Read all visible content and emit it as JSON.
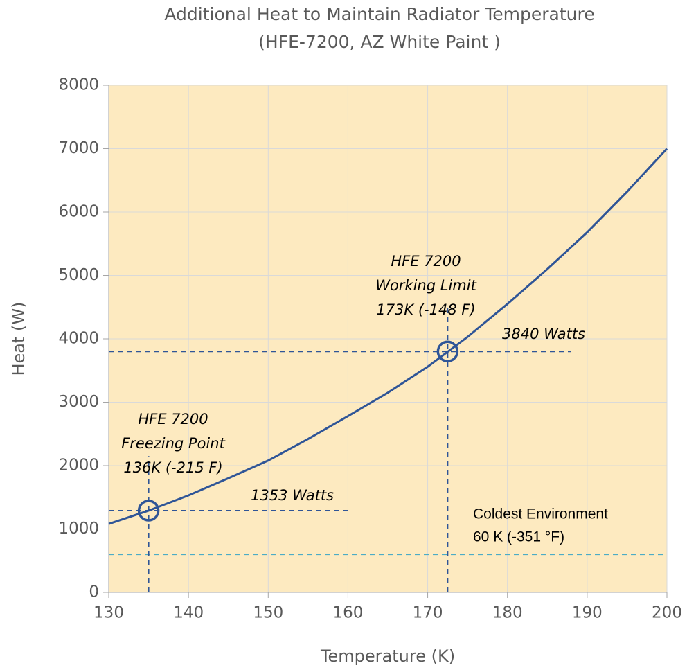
{
  "chart_data": {
    "type": "line",
    "title": "Additional Heat  to Maintain Radiator Temperature",
    "subtitle": "(HFE-7200, AZ White Paint )",
    "x_label": "Temperature  (K)",
    "y_label": "Heat (W)",
    "x": [
      130,
      135,
      140,
      145,
      150,
      155,
      160,
      165,
      170,
      175,
      180,
      185,
      190,
      195,
      200
    ],
    "series": [
      {
        "color": "#2f5597",
        "values": [
          1080,
          1290,
          1530,
          1800,
          2080,
          2420,
          2780,
          3150,
          3560,
          4030,
          4550,
          5100,
          5680,
          6320,
          7000
        ]
      }
    ],
    "xlim": [
      130,
      200
    ],
    "xticks": [
      130,
      140,
      150,
      160,
      170,
      180,
      190,
      200
    ],
    "ylim": [
      0,
      8000
    ],
    "yticks": [
      0,
      1000,
      2000,
      3000,
      4000,
      5000,
      6000,
      7000,
      8000
    ],
    "grid": true,
    "background": "#fdeac0",
    "markers": [
      {
        "x": 135,
        "y": 1290
      },
      {
        "x": 172.5,
        "y": 3800
      }
    ],
    "hlines": [
      {
        "y": 1290,
        "x": [
          130,
          160
        ],
        "color": "#2f5597"
      },
      {
        "y": 3800,
        "x": [
          130,
          188
        ],
        "color": "#2f5597"
      },
      {
        "y": 600,
        "x": [
          130,
          200
        ],
        "color": "#4bacc6"
      }
    ],
    "vlines": [
      {
        "x": 135,
        "y": [
          0,
          2150
        ],
        "color": "#2f5597"
      },
      {
        "x": 172.5,
        "y": [
          0,
          4500
        ],
        "color": "#2f5597"
      }
    ],
    "annotations": [
      {
        "lines": [
          "HFE 7200",
          "Freezing Point",
          "136K (-215 F)"
        ]
      },
      {
        "lines": [
          "1353 Watts"
        ]
      },
      {
        "lines": [
          "HFE 7200",
          "Working Limit",
          "173K (-148 F)"
        ]
      },
      {
        "lines": [
          "3840 Watts"
        ]
      },
      {
        "lines": [
          "Coldest Environment",
          "60 K (-351 °F)"
        ]
      }
    ]
  }
}
